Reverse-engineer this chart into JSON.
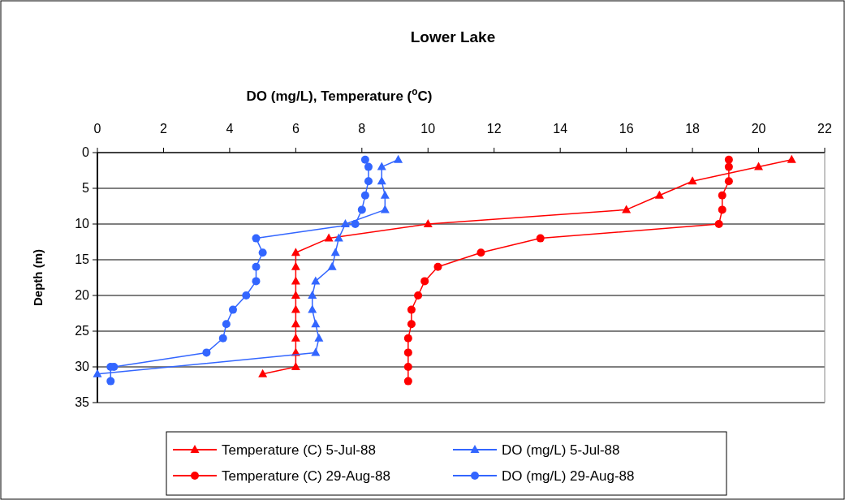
{
  "chart_data": {
    "type": "line",
    "title": "Lower Lake",
    "xlabel": "DO (mg/L), Temperature ($^{o}$C)",
    "ylabel": "Depth (m)",
    "xlim": [
      0,
      22
    ],
    "xticks": [
      0,
      2,
      4,
      6,
      8,
      10,
      12,
      14,
      16,
      18,
      20,
      22
    ],
    "ylim": [
      35,
      0
    ],
    "yticks": [
      0,
      5,
      10,
      15,
      20,
      25,
      30,
      35
    ],
    "grid": "y",
    "legend": "bottom",
    "series": [
      {
        "name": "Temperature (C) 5-Jul-88",
        "color": "#ff0000",
        "marker": "triangle",
        "x": [
          21,
          20,
          18,
          17,
          16,
          10,
          7,
          6,
          6,
          6,
          6,
          6,
          6,
          6,
          6,
          6,
          5
        ],
        "values": [
          1,
          2,
          4,
          6,
          8,
          10,
          12,
          14,
          16,
          18,
          20,
          22,
          24,
          26,
          28,
          30,
          31
        ]
      },
      {
        "name": "DO (mg/L) 5-Jul-88",
        "color": "#3366ff",
        "marker": "triangle",
        "x": [
          9.1,
          8.6,
          8.6,
          8.7,
          8.7,
          7.5,
          7.3,
          7.2,
          7.1,
          6.6,
          6.5,
          6.5,
          6.6,
          6.7,
          6.6,
          0
        ],
        "values": [
          1,
          2,
          4,
          6,
          8,
          10,
          12,
          14,
          16,
          18,
          20,
          22,
          24,
          26,
          28,
          31
        ]
      },
      {
        "name": "Temperature (C) 29-Aug-88",
        "color": "#ff0000",
        "marker": "circle",
        "x": [
          19.1,
          19.1,
          19.1,
          18.9,
          18.9,
          18.8,
          13.4,
          11.6,
          10.3,
          9.9,
          9.7,
          9.5,
          9.5,
          9.4,
          9.4,
          9.4,
          9.4
        ],
        "values": [
          1,
          2,
          4,
          6,
          8,
          10,
          12,
          14,
          16,
          18,
          20,
          22,
          24,
          26,
          28,
          30,
          32
        ]
      },
      {
        "name": "DO (mg/L) 29-Aug-88",
        "color": "#3366ff",
        "marker": "circle",
        "x": [
          8.1,
          8.2,
          8.2,
          8.1,
          8,
          7.8,
          4.8,
          5,
          4.8,
          4.8,
          4.5,
          4.1,
          3.9,
          3.8,
          3.3,
          0.5,
          0.4,
          0.4
        ],
        "values": [
          1,
          2,
          4,
          6,
          8,
          10,
          12,
          14,
          16,
          18,
          20,
          22,
          24,
          26,
          28,
          30,
          30,
          32
        ]
      }
    ]
  }
}
